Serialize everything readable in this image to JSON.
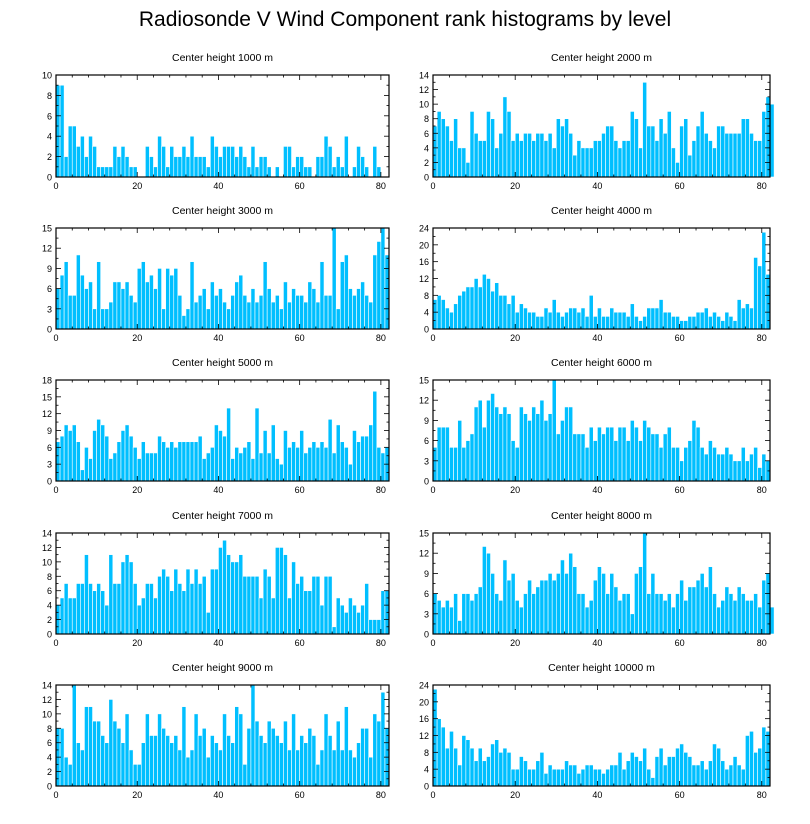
{
  "title": "Radiosonde V Wind Component rank histograms by level",
  "chart_data": [
    {
      "type": "bar",
      "title": "Center height 1000 m",
      "xlim": [
        0,
        82
      ],
      "ylim": [
        0,
        10
      ],
      "xticks": [
        0,
        20,
        40,
        60,
        80
      ],
      "yticks": [
        0,
        2,
        4,
        6,
        8,
        10
      ],
      "values": [
        9,
        9,
        2,
        5,
        5,
        3,
        4,
        2,
        4,
        3,
        1,
        1,
        1,
        1,
        3,
        2,
        3,
        2,
        1,
        1,
        0,
        0,
        3,
        2,
        1,
        4,
        3,
        1,
        3,
        2,
        2,
        3,
        2,
        4,
        2,
        2,
        2,
        1,
        4,
        3,
        2,
        3,
        3,
        3,
        2,
        3,
        2,
        1,
        3,
        1,
        2,
        2,
        1,
        0,
        1,
        0,
        3,
        3,
        1,
        2,
        2,
        1,
        1,
        0,
        2,
        2,
        4,
        3,
        1,
        2,
        1,
        4,
        0,
        1,
        3,
        2,
        1,
        0,
        3,
        1
      ]
    },
    {
      "type": "bar",
      "title": "Center height 2000 m",
      "xlim": [
        0,
        82
      ],
      "ylim": [
        0,
        14
      ],
      "xticks": [
        0,
        20,
        40,
        60,
        80
      ],
      "yticks": [
        0,
        2,
        4,
        6,
        8,
        10,
        12,
        14
      ],
      "values": [
        7,
        9,
        8,
        7,
        5,
        8,
        4,
        4,
        2,
        9,
        6,
        5,
        5,
        9,
        8,
        4,
        6,
        11,
        9,
        5,
        6,
        5,
        6,
        6,
        5,
        6,
        6,
        5,
        6,
        4,
        8,
        7,
        8,
        6,
        3,
        5,
        4,
        4,
        4,
        5,
        5,
        6,
        7,
        7,
        5,
        4,
        5,
        5,
        9,
        8,
        4,
        13,
        7,
        7,
        5,
        8,
        6,
        9,
        4,
        2,
        7,
        8,
        3,
        5,
        7,
        9,
        6,
        5,
        4,
        7,
        7,
        6,
        6,
        6,
        6,
        8,
        8,
        6,
        5,
        5,
        9,
        11,
        10
      ]
    },
    {
      "type": "bar",
      "title": "Center height 3000 m",
      "xlim": [
        0,
        82
      ],
      "ylim": [
        0,
        15
      ],
      "xticks": [
        0,
        20,
        40,
        60,
        80
      ],
      "yticks": [
        0,
        3,
        6,
        9,
        12,
        15
      ],
      "values": [
        6,
        8,
        10,
        5,
        5,
        11,
        8,
        6,
        7,
        3,
        10,
        3,
        3,
        4,
        7,
        7,
        6,
        7,
        5,
        4,
        9,
        10,
        7,
        8,
        6,
        9,
        3,
        9,
        8,
        9,
        5,
        2,
        3,
        10,
        4,
        5,
        6,
        3,
        7,
        5,
        6,
        4,
        3,
        5,
        7,
        8,
        5,
        4,
        6,
        4,
        5,
        10,
        6,
        4,
        5,
        3,
        7,
        4,
        6,
        5,
        5,
        4,
        7,
        6,
        4,
        10,
        5,
        5,
        15,
        3,
        10,
        11,
        6,
        5,
        6,
        7,
        5,
        4,
        11,
        13,
        15,
        11
      ]
    },
    {
      "type": "bar",
      "title": "Center height 4000 m",
      "xlim": [
        0,
        82
      ],
      "ylim": [
        0,
        24
      ],
      "xticks": [
        0,
        20,
        40,
        60,
        80
      ],
      "yticks": [
        0,
        4,
        8,
        12,
        16,
        20,
        24
      ],
      "values": [
        7,
        8,
        7,
        5,
        4,
        6,
        8,
        9,
        10,
        10,
        12,
        10,
        13,
        12,
        9,
        11,
        8,
        8,
        6,
        8,
        4,
        6,
        5,
        4,
        4,
        3,
        3,
        5,
        4,
        7,
        4,
        3,
        4,
        5,
        5,
        4,
        5,
        3,
        8,
        3,
        5,
        3,
        3,
        5,
        4,
        4,
        4,
        3,
        6,
        3,
        2,
        3,
        5,
        5,
        5,
        7,
        4,
        4,
        3,
        3,
        2,
        2,
        3,
        3,
        4,
        4,
        5,
        3,
        4,
        3,
        2,
        4,
        3,
        2,
        7,
        5,
        6,
        5,
        17,
        15,
        23,
        13
      ]
    },
    {
      "type": "bar",
      "title": "Center height 5000 m",
      "xlim": [
        0,
        82
      ],
      "ylim": [
        0,
        18
      ],
      "xticks": [
        0,
        20,
        40,
        60,
        80
      ],
      "yticks": [
        0,
        3,
        6,
        9,
        12,
        15,
        18
      ],
      "values": [
        7,
        8,
        10,
        9,
        10,
        7,
        2,
        6,
        4,
        9,
        11,
        10,
        8,
        4,
        5,
        7,
        9,
        10,
        8,
        6,
        4,
        7,
        5,
        5,
        5,
        8,
        7,
        6,
        7,
        6,
        7,
        7,
        7,
        7,
        7,
        8,
        4,
        5,
        6,
        10,
        9,
        8,
        13,
        4,
        6,
        5,
        6,
        7,
        4,
        13,
        5,
        9,
        5,
        10,
        4,
        3,
        9,
        6,
        7,
        6,
        9,
        5,
        6,
        7,
        6,
        7,
        6,
        11,
        5,
        10,
        7,
        6,
        3,
        9,
        7,
        8,
        8,
        10,
        16,
        6,
        5,
        6
      ]
    },
    {
      "type": "bar",
      "title": "Center height 6000 m",
      "xlim": [
        0,
        82
      ],
      "ylim": [
        0,
        15
      ],
      "xticks": [
        0,
        20,
        40,
        60,
        80
      ],
      "yticks": [
        0,
        3,
        6,
        9,
        12,
        15
      ],
      "values": [
        5,
        8,
        8,
        8,
        5,
        5,
        9,
        5,
        6,
        7,
        11,
        12,
        8,
        12,
        13,
        11,
        10,
        11,
        10,
        6,
        5,
        11,
        10,
        9,
        11,
        10,
        12,
        9,
        10,
        15,
        7,
        9,
        11,
        11,
        7,
        7,
        7,
        5,
        8,
        6,
        8,
        7,
        8,
        8,
        6,
        8,
        8,
        6,
        9,
        8,
        6,
        9,
        8,
        7,
        7,
        5,
        7,
        8,
        5,
        5,
        3,
        5,
        6,
        9,
        8,
        5,
        4,
        6,
        5,
        4,
        4,
        5,
        4,
        3,
        3,
        5,
        3,
        4,
        5,
        2,
        4,
        3
      ]
    },
    {
      "type": "bar",
      "title": "Center height 7000 m",
      "xlim": [
        0,
        82
      ],
      "ylim": [
        0,
        14
      ],
      "xticks": [
        0,
        20,
        40,
        60,
        80
      ],
      "yticks": [
        0,
        2,
        4,
        6,
        8,
        10,
        12,
        14
      ],
      "values": [
        4,
        5,
        7,
        5,
        5,
        7,
        7,
        11,
        7,
        6,
        7,
        6,
        4,
        11,
        7,
        7,
        10,
        11,
        10,
        7,
        4,
        5,
        7,
        7,
        5,
        8,
        9,
        8,
        6,
        9,
        7,
        6,
        9,
        7,
        9,
        7,
        8,
        3,
        9,
        9,
        12,
        13,
        11,
        10,
        10,
        11,
        8,
        8,
        8,
        8,
        5,
        9,
        8,
        5,
        12,
        12,
        11,
        5,
        10,
        7,
        8,
        6,
        6,
        8,
        8,
        4,
        8,
        8,
        1,
        5,
        4,
        3,
        5,
        4,
        3,
        4,
        7,
        2,
        2,
        2,
        6,
        6
      ]
    },
    {
      "type": "bar",
      "title": "Center height 8000 m",
      "xlim": [
        0,
        82
      ],
      "ylim": [
        0,
        15
      ],
      "xticks": [
        0,
        20,
        40,
        60,
        80
      ],
      "yticks": [
        0,
        3,
        6,
        9,
        12,
        15
      ],
      "values": [
        6,
        5,
        4,
        5,
        4,
        6,
        2,
        6,
        6,
        5,
        6,
        7,
        13,
        12,
        9,
        6,
        5,
        11,
        8,
        9,
        5,
        4,
        6,
        8,
        6,
        7,
        8,
        8,
        9,
        8,
        9,
        11,
        9,
        12,
        10,
        6,
        6,
        4,
        5,
        8,
        10,
        9,
        6,
        9,
        7,
        5,
        6,
        6,
        3,
        9,
        10,
        15,
        6,
        9,
        6,
        6,
        5,
        6,
        4,
        6,
        8,
        5,
        7,
        7,
        8,
        9,
        7,
        10,
        6,
        4,
        5,
        7,
        6,
        5,
        7,
        6,
        5,
        5,
        6,
        4,
        8,
        9,
        4
      ]
    },
    {
      "type": "bar",
      "title": "Center height 9000 m",
      "xlim": [
        0,
        82
      ],
      "ylim": [
        0,
        14
      ],
      "xticks": [
        0,
        20,
        40,
        60,
        80
      ],
      "yticks": [
        0,
        2,
        4,
        6,
        8,
        10,
        12,
        14
      ],
      "values": [
        8,
        8,
        4,
        3,
        14,
        6,
        5,
        11,
        11,
        9,
        9,
        7,
        6,
        12,
        9,
        8,
        6,
        10,
        5,
        3,
        3,
        6,
        10,
        7,
        7,
        10,
        8,
        7,
        6,
        7,
        5,
        11,
        4,
        5,
        10,
        7,
        8,
        4,
        7,
        6,
        5,
        10,
        7,
        6,
        11,
        10,
        3,
        8,
        14,
        9,
        7,
        6,
        9,
        8,
        7,
        6,
        9,
        5,
        10,
        5,
        7,
        6,
        8,
        7,
        3,
        5,
        10,
        7,
        5,
        9,
        5,
        11,
        5,
        4,
        6,
        8,
        8,
        4,
        10,
        9,
        13,
        8
      ]
    },
    {
      "type": "bar",
      "title": "Center height 10000 m",
      "xlim": [
        0,
        82
      ],
      "ylim": [
        0,
        24
      ],
      "xticks": [
        0,
        20,
        40,
        60,
        80
      ],
      "yticks": [
        0,
        4,
        8,
        12,
        16,
        20,
        24
      ],
      "values": [
        23,
        16,
        14,
        9,
        13,
        9,
        5,
        12,
        11,
        9,
        6,
        9,
        6,
        7,
        10,
        11,
        8,
        9,
        8,
        4,
        4,
        7,
        6,
        4,
        4,
        6,
        8,
        3,
        5,
        4,
        4,
        4,
        6,
        5,
        5,
        3,
        4,
        5,
        5,
        4,
        4,
        3,
        4,
        5,
        5,
        8,
        4,
        6,
        8,
        7,
        6,
        9,
        4,
        2,
        7,
        9,
        5,
        7,
        7,
        9,
        10,
        8,
        7,
        5,
        5,
        6,
        4,
        6,
        10,
        9,
        6,
        4,
        5,
        7,
        5,
        4,
        12,
        13,
        8,
        9,
        14,
        13
      ]
    }
  ]
}
